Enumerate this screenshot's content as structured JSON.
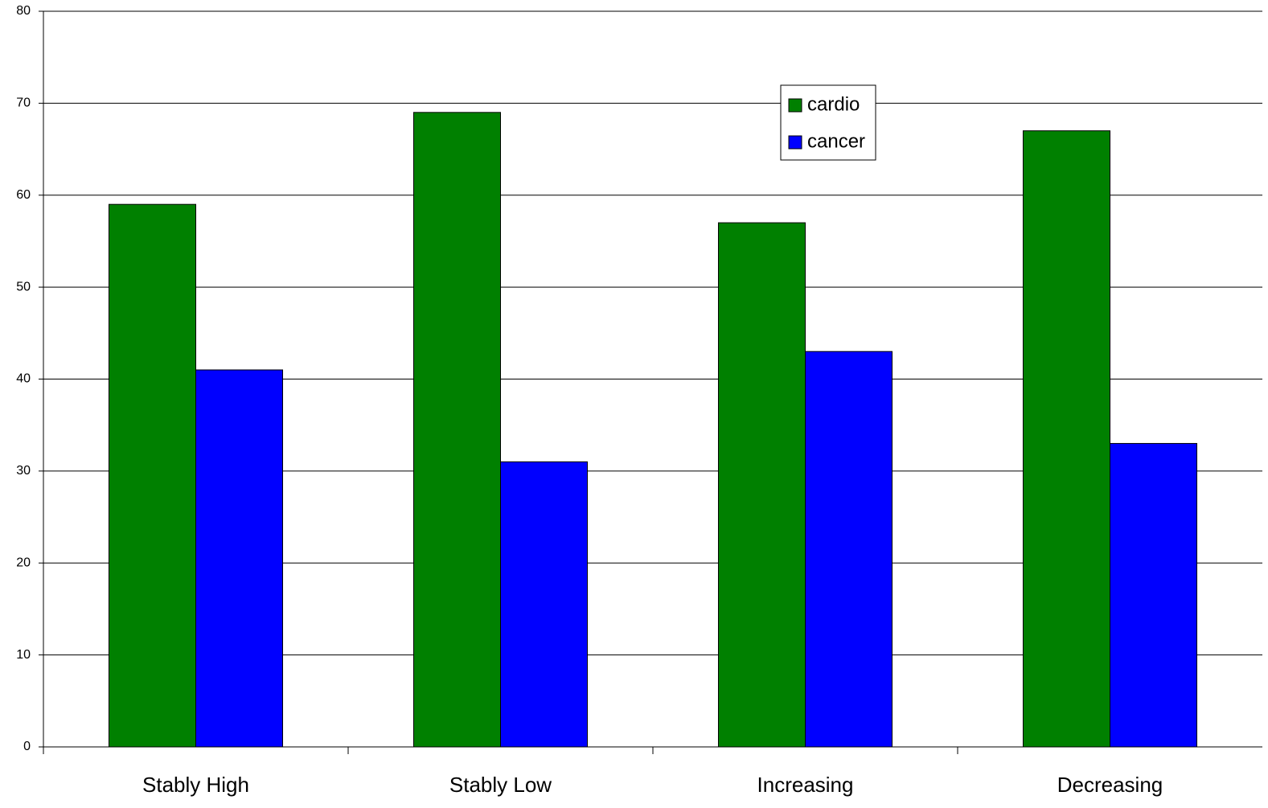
{
  "chart_data": {
    "type": "bar",
    "categories": [
      "Stably High",
      "Stably Low",
      "Increasing",
      "Decreasing"
    ],
    "series": [
      {
        "name": "cardio",
        "color": "#008000",
        "values": [
          59,
          69,
          57,
          67
        ]
      },
      {
        "name": "cancer",
        "color": "#0000ff",
        "values": [
          41,
          31,
          43,
          33
        ]
      }
    ],
    "ylim": [
      0,
      80
    ],
    "yticks": [
      0,
      10,
      20,
      30,
      40,
      50,
      60,
      70,
      80
    ],
    "grid": true
  }
}
